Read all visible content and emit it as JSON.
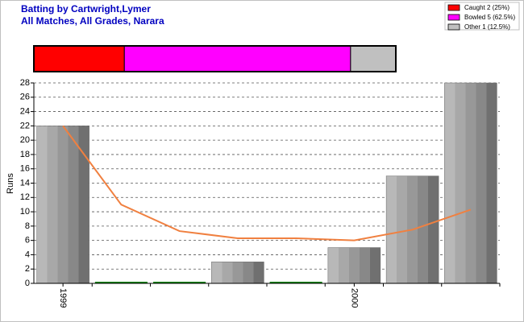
{
  "chart_data": [
    {
      "type": "stacked-bar",
      "title": "Batting by Cartwright,Lymer",
      "subtitle": "All Matches, All Grades, Narara",
      "series": [
        {
          "name": "Caught 2 (25%)",
          "color": "#ff0000",
          "values": [
            25
          ]
        },
        {
          "name": "Bowled 5 (62.5%)",
          "color": "#ff00ff",
          "values": [
            62.5
          ]
        },
        {
          "name": "Other 1 (12.5%)",
          "color": "#c0c0c0",
          "values": [
            12.5
          ]
        }
      ],
      "xlim": [
        0,
        100
      ]
    },
    {
      "type": "bar",
      "ylabel": "Runs",
      "categories": [
        "1999",
        null,
        null,
        null,
        null,
        "2000",
        null,
        null
      ],
      "values": [
        22,
        0,
        0,
        3,
        0,
        5,
        15,
        28
      ],
      "color": "#a0a0a0",
      "zero_color": "#008000",
      "line": {
        "values": [
          22,
          11,
          7.3,
          6.3,
          6.3,
          6,
          7.5,
          10.3
        ],
        "color": "#f08040"
      },
      "ylim": [
        0,
        28
      ],
      "yticks": [
        0,
        2,
        4,
        6,
        8,
        10,
        12,
        14,
        16,
        18,
        20,
        22,
        24,
        26,
        28
      ],
      "grid": true
    }
  ]
}
